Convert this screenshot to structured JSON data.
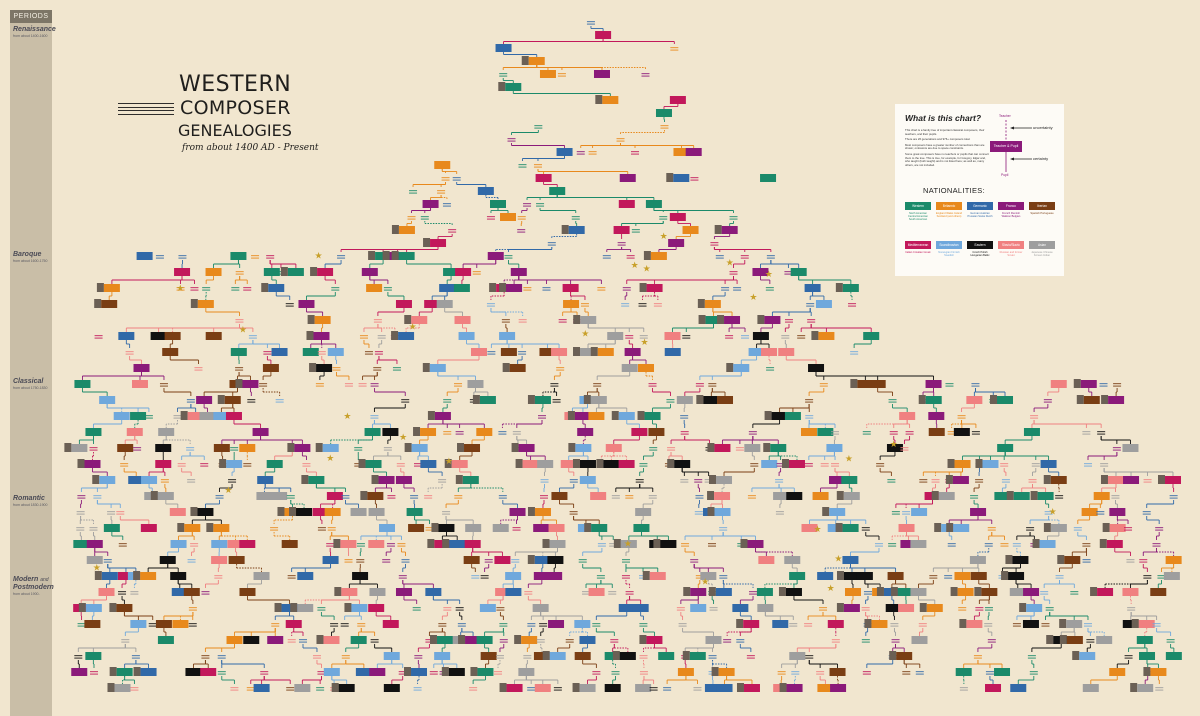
{
  "periods_label": "PERIODS",
  "periods": [
    {
      "name": "Renaissance",
      "range": "from about 1400-1600",
      "y": 26
    },
    {
      "name": "Baroque",
      "range": "from about 1600-1750",
      "y": 251
    },
    {
      "name": "Classical",
      "range": "from about 1750-1830",
      "y": 378
    },
    {
      "name": "Romantic",
      "range": "from about 1830-1900",
      "y": 495
    },
    {
      "name": "Modern",
      "name_and": "and",
      "name2": "Postmodern",
      "range": "from about 1900-",
      "y": 576
    }
  ],
  "title": {
    "line1": "WESTERN",
    "line2": "COMPOSER",
    "line3": "GENEALOGIES",
    "subtitle": "from about 1400 AD - Present"
  },
  "legend": {
    "question": "What is this chart?",
    "paragraphs": [
      "This chart is a family tree of important classical composers, their teachers, and their pupils.",
      "There are 26 generations and 976+ composers total.",
      "Most composers have a greater number of connections than are shown; omissions are due to space constraints.",
      "Some great composers have no teachers or pupils that can connect them to the tree. This is true, for example, for Gregory, Elgar and, who taught (both taught) and is not listed here; as well as, many others, are not included."
    ],
    "teacher": "Teacher",
    "pupil": "Pupil",
    "teacher_pupil": "Teacher & Pupil",
    "uncertainty": "uncertainty",
    "certainty": "certainty",
    "nationalities_title": "NATIONALITIES:",
    "nationalities": [
      {
        "label": "Western",
        "color": "#1b8a6a",
        "desc": "North American Central American South American"
      },
      {
        "label": "Britannic",
        "color": "#e8891c",
        "desc": "England Wales Ireland Scotland (and others)"
      },
      {
        "label": "Germanic",
        "color": "#3169a8",
        "desc": "German Austrian Prussian Swiss Dutch"
      },
      {
        "label": "Franco",
        "color": "#8b1a7a",
        "desc": "French Flemish Walloon Belgian"
      },
      {
        "label": "Iberian",
        "color": "#7a3e14",
        "desc": "Spanish Portuguese"
      },
      {
        "label": "Mediterranean",
        "color": "#c2185b",
        "desc": "Italian Croatian Greek"
      },
      {
        "label": "Scandinavian",
        "color": "#6fa8dc",
        "desc": "Norwegian Finnish Swedish"
      },
      {
        "label": "Eastern",
        "color": "#111111",
        "desc": "Czech Polish Hungarian Baltic"
      },
      {
        "label": "Slavic/Slavic",
        "color": "#f08080",
        "desc": "Russian and former Soviet"
      },
      {
        "label": "Asian",
        "color": "#9e9e9e",
        "desc": "Japanese Chinese Korean Indian"
      }
    ]
  },
  "colors": {
    "western": "#1b8a6a",
    "britannic": "#e8891c",
    "germanic": "#3169a8",
    "franco": "#8b1a7a",
    "iberian": "#7a3e14",
    "mediterranean": "#c2185b",
    "scandinavian": "#6fa8dc",
    "eastern": "#111111",
    "slavic": "#f08080",
    "asian": "#9e9e9e",
    "background": "#f1e6cf",
    "sidebar": "#c9bea7"
  }
}
